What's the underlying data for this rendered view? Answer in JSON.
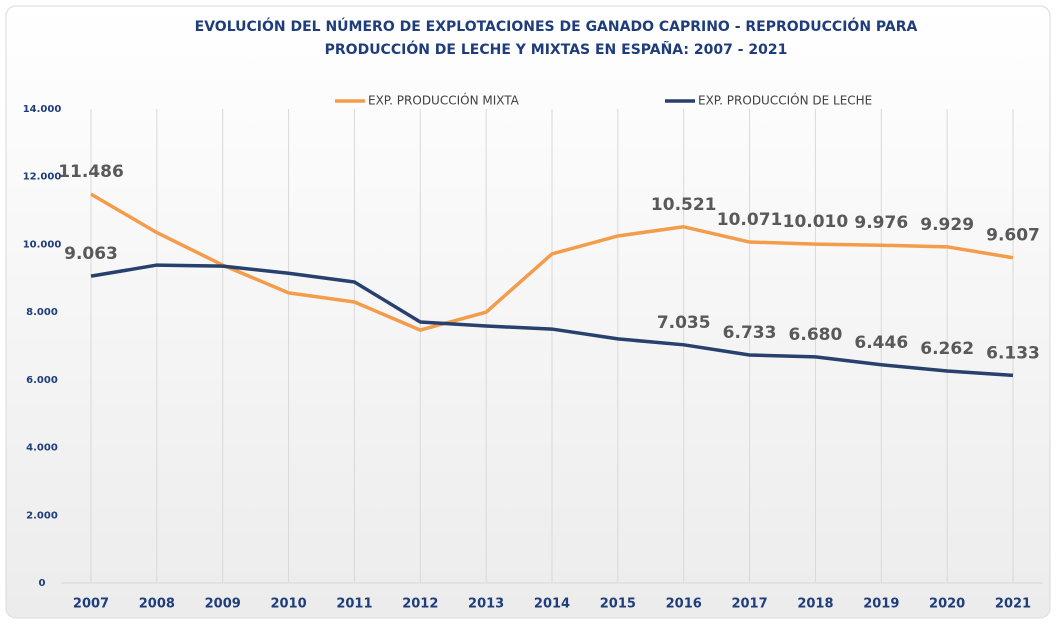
{
  "chart_data": {
    "type": "line",
    "title": [
      "EVOLUCIÓN DEL NÚMERO DE EXPLOTACIONES DE GANADO CAPRINO - REPRODUCCIÓN PARA",
      "PRODUCCIÓN DE LECHE Y MIXTAS EN ESPAÑA: 2007 - 2021"
    ],
    "categories": [
      "2007",
      "2008",
      "2009",
      "2010",
      "2011",
      "2012",
      "2013",
      "2014",
      "2015",
      "2016",
      "2017",
      "2018",
      "2019",
      "2020",
      "2021"
    ],
    "series": [
      {
        "name": "EXP. PRODUCCIÓN MIXTA",
        "color": "#f39c4a",
        "values": [
          11486,
          10350,
          9390,
          8570,
          8300,
          7470,
          8000,
          9720,
          10250,
          10521,
          10071,
          10010,
          9976,
          9929,
          9607
        ],
        "value_labels": [
          "11.486",
          null,
          null,
          null,
          null,
          null,
          null,
          null,
          null,
          "10.521",
          "10.071",
          "10.010",
          "9.976",
          "9.929",
          "9.607"
        ]
      },
      {
        "name": "EXP. PRODUCCIÓN DE LECHE",
        "color": "#27406e",
        "values": [
          9063,
          9390,
          9360,
          9150,
          8890,
          7710,
          7590,
          7500,
          7210,
          7035,
          6733,
          6680,
          6446,
          6262,
          6133
        ],
        "value_labels": [
          "9.063",
          null,
          null,
          null,
          null,
          null,
          null,
          null,
          null,
          "7.035",
          "6.733",
          "6.680",
          "6.446",
          "6.262",
          "6.133"
        ]
      }
    ],
    "ylim": [
      0,
      14000
    ],
    "yticks": [
      0,
      {
        "value": 2000,
        "label": "2.000"
      },
      {
        "value": 4000,
        "label": "4.000"
      },
      {
        "value": 6000,
        "label": "6.000"
      },
      {
        "value": 8000,
        "label": "8.000"
      },
      {
        "value": 10000,
        "label": "10.000"
      },
      {
        "value": 12000,
        "label": "12.000"
      },
      {
        "value": 14000,
        "label": "14.000"
      }
    ],
    "grid": "x",
    "legend": "top"
  }
}
